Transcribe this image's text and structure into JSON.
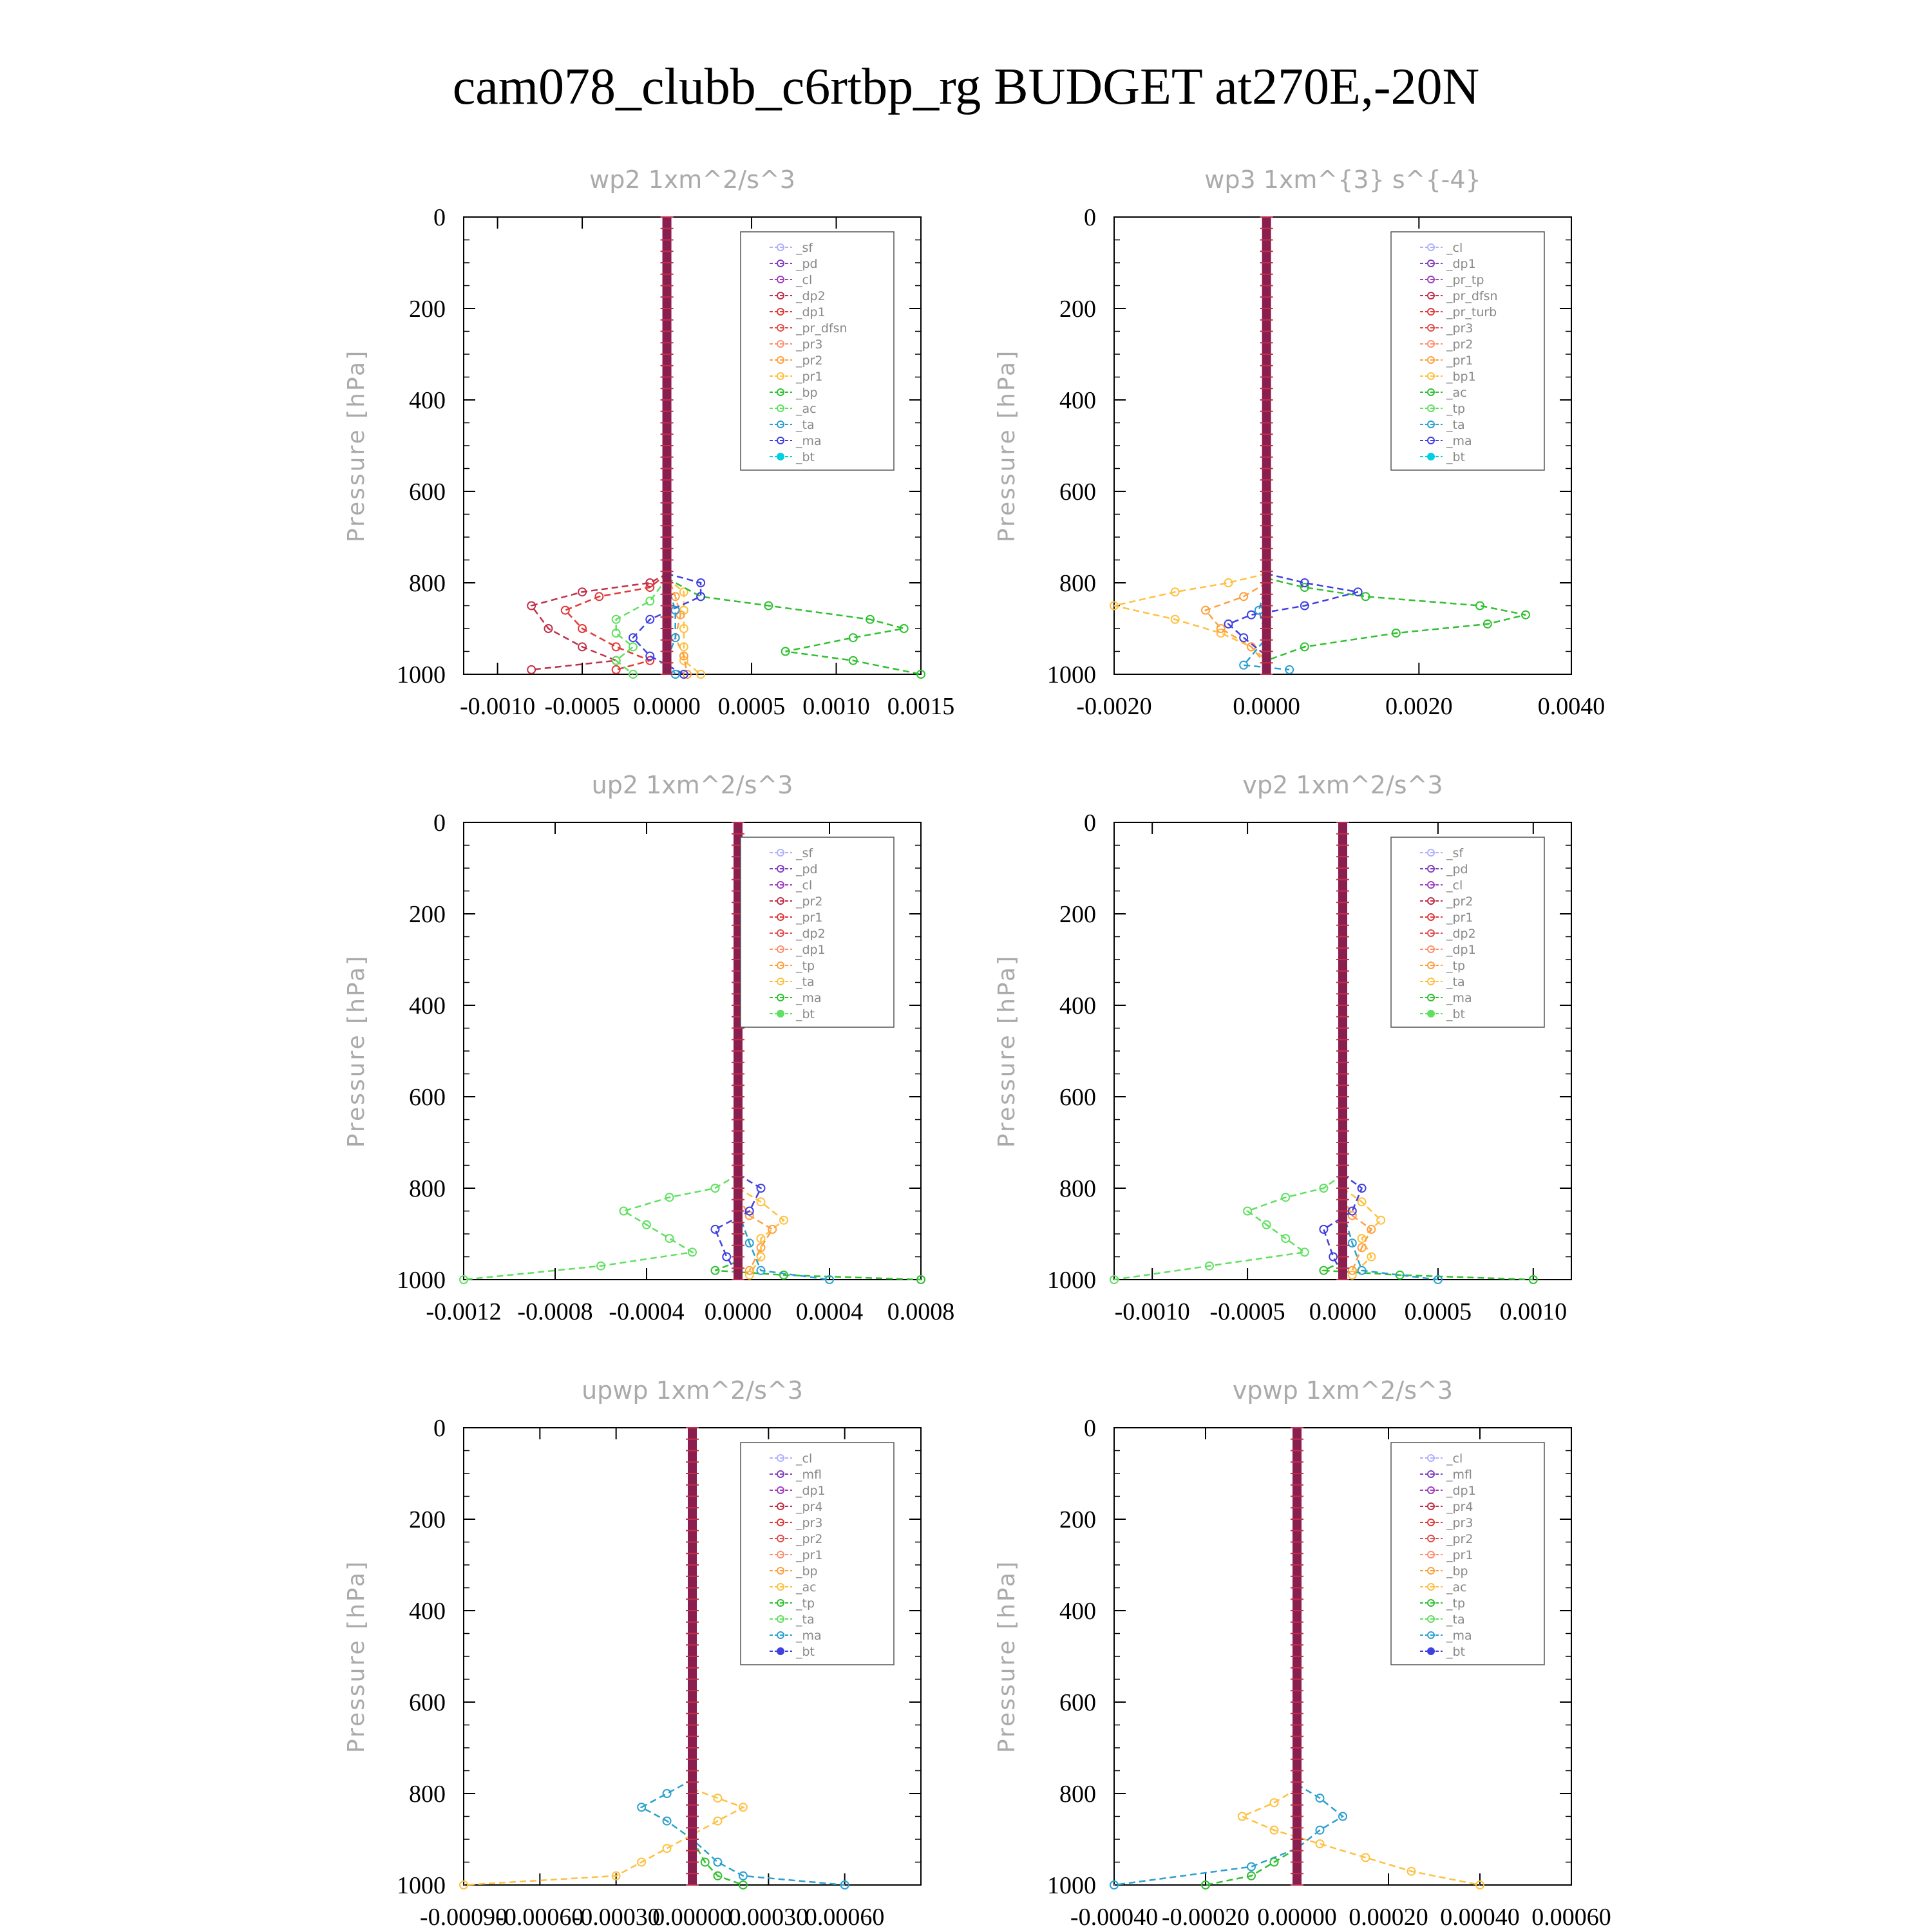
{
  "title": "cam078_clubb_c6rtbp_rg  BUDGET at270E,-20N",
  "chart_data": [
    {
      "type": "line",
      "title": "wp2   1xm^2/s^3",
      "ylabel": "Pressure [hPa]",
      "xlim": [
        -0.0012,
        0.0015
      ],
      "ylim": [
        1000,
        0
      ],
      "xticks": [
        "-0.0010",
        "-0.0005",
        "0.0000",
        "0.0005",
        "0.0010",
        "0.0015"
      ],
      "xtick_values": [
        -0.001,
        -0.0005,
        0,
        0.0005,
        0.001,
        0.0015
      ],
      "yticks": [
        0,
        200,
        400,
        600,
        800,
        1000
      ],
      "legend": [
        "_sf",
        "_pd",
        "_cl",
        "_dp2",
        "_dp1",
        "_pr_dfsn",
        "_pr3",
        "_pr2",
        "_pr1",
        "_bp",
        "_ac",
        "_ta",
        "_ma",
        "_bt"
      ],
      "series": [
        {
          "name": "_dp2",
          "color": "#c0304a",
          "x": [
            0,
            -0.0001,
            -0.0005,
            -0.0008,
            -0.0007,
            -0.0005,
            -0.0003,
            -0.0008
          ],
          "y": [
            780,
            800,
            820,
            850,
            900,
            940,
            970,
            990
          ]
        },
        {
          "name": "_dp1",
          "color": "#e03a3a",
          "x": [
            0,
            -0.0001,
            -0.0004,
            -0.0006,
            -0.0005,
            -0.0003,
            -0.0001,
            -0.0003
          ],
          "y": [
            780,
            810,
            830,
            860,
            900,
            940,
            970,
            990
          ]
        },
        {
          "name": "_pr2",
          "color": "#ffc040",
          "x": [
            0,
            0.0001,
            0.0001,
            0.0001,
            0.0001,
            0.0001,
            0.0002
          ],
          "y": [
            790,
            820,
            860,
            900,
            940,
            970,
            1000
          ]
        },
        {
          "name": "_pr1",
          "color": "#ffa040",
          "x": [
            0,
            5e-05,
            8e-05,
            5e-05,
            0.0001,
            0.00012
          ],
          "y": [
            780,
            830,
            870,
            920,
            960,
            1000
          ]
        },
        {
          "name": "_bp",
          "color": "#30c030",
          "x": [
            0,
            0.0002,
            0.0006,
            0.0012,
            0.0014,
            0.0011,
            0.0007,
            0.0011,
            0.0015
          ],
          "y": [
            790,
            830,
            850,
            880,
            900,
            920,
            950,
            970,
            1000
          ]
        },
        {
          "name": "_ac",
          "color": "#60e060",
          "x": [
            0,
            -0.0001,
            -0.0003,
            -0.0003,
            -0.0002,
            -0.0003,
            -0.0002
          ],
          "y": [
            790,
            840,
            880,
            910,
            940,
            970,
            1000
          ]
        },
        {
          "name": "_ta",
          "color": "#4040e0",
          "x": [
            0,
            0.0002,
            0.0002,
            -0.0001,
            -0.0002,
            -0.0001,
            0.0001
          ],
          "y": [
            780,
            800,
            830,
            880,
            920,
            960,
            1000
          ]
        },
        {
          "name": "_ma",
          "color": "#2aa0d0",
          "x": [
            0,
            5e-05,
            5e-05,
            0,
            5e-05
          ],
          "y": [
            800,
            860,
            920,
            970,
            1000
          ]
        }
      ]
    },
    {
      "type": "line",
      "title": "wp3   1xm^{3} s^{-4}",
      "ylabel": "Pressure [hPa]",
      "xlim": [
        -0.002,
        0.004
      ],
      "ylim": [
        1000,
        0
      ],
      "xticks": [
        "-0.0020",
        "0.0000",
        "0.0020",
        "0.0040"
      ],
      "xtick_values": [
        -0.002,
        0,
        0.002,
        0.004
      ],
      "yticks": [
        0,
        200,
        400,
        600,
        800,
        1000
      ],
      "legend": [
        "_cl",
        "_dp1",
        "_pr_tp",
        "_pr_dfsn",
        "_pr_turb",
        "_pr3",
        "_pr2",
        "_pr1",
        "_bp1",
        "_ac",
        "_tp",
        "_ta",
        "_ma",
        "_bt"
      ],
      "series": [
        {
          "name": "_pr1",
          "color": "#ffc040",
          "x": [
            0,
            -0.0005,
            -0.0012,
            -0.002,
            -0.0012,
            -0.0006,
            -0.0002,
            0
          ],
          "y": [
            780,
            800,
            820,
            850,
            880,
            910,
            940,
            970
          ]
        },
        {
          "name": "_pr2",
          "color": "#ffa040",
          "x": [
            0,
            -0.0003,
            -0.0008,
            -0.0006,
            -0.0002,
            0
          ],
          "y": [
            800,
            830,
            860,
            900,
            940,
            980
          ]
        },
        {
          "name": "_bp1",
          "color": "#30c030",
          "x": [
            0,
            0.0005,
            0.0013,
            0.0028,
            0.0034,
            0.0029,
            0.0017,
            0.0005,
            0
          ],
          "y": [
            790,
            810,
            830,
            850,
            870,
            890,
            910,
            940,
            970
          ]
        },
        {
          "name": "_ta",
          "color": "#4040e0",
          "x": [
            0,
            0.0005,
            0.0012,
            0.0005,
            -0.0002,
            -0.0005,
            -0.0003,
            0
          ],
          "y": [
            780,
            800,
            820,
            850,
            870,
            890,
            920,
            960
          ]
        },
        {
          "name": "_ma",
          "color": "#2aa0d0",
          "x": [
            0,
            -0.0001,
            0,
            -0.0003,
            0.0003
          ],
          "y": [
            800,
            860,
            920,
            980,
            990
          ]
        }
      ]
    },
    {
      "type": "line",
      "title": "up2   1xm^2/s^3",
      "ylabel": "Pressure [hPa]",
      "xlim": [
        -0.0012,
        0.0008
      ],
      "ylim": [
        1000,
        0
      ],
      "xticks": [
        "-0.0012",
        "-0.0008",
        "-0.0004",
        "0.0000",
        "0.0004",
        "0.0008"
      ],
      "xtick_values": [
        -0.0012,
        -0.0008,
        -0.0004,
        0,
        0.0004,
        0.0008
      ],
      "yticks": [
        0,
        200,
        400,
        600,
        800,
        1000
      ],
      "legend": [
        "_sf",
        "_pd",
        "_cl",
        "_pr2",
        "_pr1",
        "_dp2",
        "_dp1",
        "_tp",
        "_ta",
        "_ma",
        "_bt"
      ],
      "series": [
        {
          "name": "_dp1",
          "color": "#60e060",
          "x": [
            0,
            -0.0001,
            -0.0003,
            -0.0005,
            -0.0004,
            -0.0003,
            -0.0002,
            -0.0006,
            -0.0012
          ],
          "y": [
            770,
            800,
            820,
            850,
            880,
            910,
            940,
            970,
            1000
          ]
        },
        {
          "name": "_dp2",
          "color": "#30c030",
          "x": [
            0,
            -0.0001,
            0.0002,
            0.0008
          ],
          "y": [
            960,
            980,
            990,
            1000
          ]
        },
        {
          "name": "_pr1",
          "color": "#ffc040",
          "x": [
            0,
            0.0001,
            0.0002,
            0.0001,
            0.0001,
            5e-05
          ],
          "y": [
            800,
            830,
            870,
            910,
            950,
            990
          ]
        },
        {
          "name": "_pr2",
          "color": "#ffa040",
          "x": [
            0,
            5e-05,
            0.00015,
            0.0001,
            5e-05
          ],
          "y": [
            820,
            860,
            890,
            930,
            980
          ]
        },
        {
          "name": "_ta",
          "color": "#4040e0",
          "x": [
            0,
            0.0001,
            5e-05,
            -0.0001,
            -5e-05,
            0
          ],
          "y": [
            770,
            800,
            850,
            890,
            950,
            990
          ]
        },
        {
          "name": "_ma",
          "color": "#2aa0d0",
          "x": [
            0,
            5e-05,
            0.0001,
            0.0004
          ],
          "y": [
            850,
            920,
            980,
            1000
          ]
        }
      ]
    },
    {
      "type": "line",
      "title": "vp2   1xm^2/s^3",
      "ylabel": "Pressure [hPa]",
      "xlim": [
        -0.0012,
        0.0012
      ],
      "ylim": [
        1000,
        0
      ],
      "xticks": [
        "-0.0010",
        "-0.0005",
        "0.0000",
        "0.0005",
        "0.0010"
      ],
      "xtick_values": [
        -0.001,
        -0.0005,
        0,
        0.0005,
        0.001
      ],
      "yticks": [
        0,
        200,
        400,
        600,
        800,
        1000
      ],
      "legend": [
        "_sf",
        "_pd",
        "_cl",
        "_pr2",
        "_pr1",
        "_dp2",
        "_dp1",
        "_tp",
        "_ta",
        "_ma",
        "_bt"
      ],
      "series": [
        {
          "name": "_dp1",
          "color": "#60e060",
          "x": [
            0,
            -0.0001,
            -0.0003,
            -0.0005,
            -0.0004,
            -0.0003,
            -0.0002,
            -0.0007,
            -0.0012
          ],
          "y": [
            770,
            800,
            820,
            850,
            880,
            910,
            940,
            970,
            1000
          ]
        },
        {
          "name": "_dp2",
          "color": "#30c030",
          "x": [
            0,
            -0.0001,
            0.0003,
            0.001
          ],
          "y": [
            960,
            980,
            990,
            1000
          ]
        },
        {
          "name": "_pr1",
          "color": "#ffc040",
          "x": [
            0,
            0.0001,
            0.0002,
            0.0001,
            0.00015,
            5e-05
          ],
          "y": [
            800,
            830,
            870,
            910,
            950,
            990
          ]
        },
        {
          "name": "_pr2",
          "color": "#ffa040",
          "x": [
            0,
            5e-05,
            0.00015,
            0.0001,
            5e-05
          ],
          "y": [
            820,
            860,
            890,
            930,
            980
          ]
        },
        {
          "name": "_ta",
          "color": "#4040e0",
          "x": [
            0,
            0.0001,
            5e-05,
            -0.0001,
            -5e-05,
            0
          ],
          "y": [
            770,
            800,
            850,
            890,
            950,
            990
          ]
        },
        {
          "name": "_ma",
          "color": "#2aa0d0",
          "x": [
            0,
            5e-05,
            0.0001,
            0.0005
          ],
          "y": [
            850,
            920,
            980,
            1000
          ]
        }
      ]
    },
    {
      "type": "line",
      "title": "upwp   1xm^2/s^3",
      "ylabel": "Pressure [hPa]",
      "xlim": [
        -0.0009,
        0.0009
      ],
      "ylim": [
        1000,
        0
      ],
      "xticks": [
        "-0.00090",
        "-0.00060",
        "-0.00030",
        "0.00000",
        "0.00030",
        "0.00060"
      ],
      "xtick_values": [
        -0.0009,
        -0.0006,
        -0.0003,
        0,
        0.0003,
        0.0006
      ],
      "yticks": [
        0,
        200,
        400,
        600,
        800,
        1000
      ],
      "legend": [
        "_cl",
        "_mfl",
        "_dp1",
        "_pr4",
        "_pr3",
        "_pr2",
        "_pr1",
        "_bp",
        "_ac",
        "_tp",
        "_ta",
        "_ma",
        "_bt"
      ],
      "series": [
        {
          "name": "_pr1",
          "color": "#ffc040",
          "x": [
            0,
            0.0001,
            0.0002,
            0.0001,
            0,
            -0.0001,
            -0.0002,
            -0.0003,
            -0.0009
          ],
          "y": [
            790,
            810,
            830,
            860,
            890,
            920,
            950,
            980,
            1000
          ]
        },
        {
          "name": "_tp",
          "color": "#2aa0d0",
          "x": [
            0,
            -0.0001,
            -0.0002,
            -0.0001,
            0,
            0.0001,
            0.0002,
            0.0006
          ],
          "y": [
            770,
            800,
            830,
            860,
            900,
            950,
            980,
            1000
          ]
        },
        {
          "name": "_bp",
          "color": "#30c030",
          "x": [
            0,
            5e-05,
            0.0001,
            0.0002
          ],
          "y": [
            900,
            950,
            980,
            1000
          ]
        }
      ]
    },
    {
      "type": "line",
      "title": "vpwp   1xm^2/s^3",
      "ylabel": "Pressure [hPa]",
      "xlim": [
        -0.0004,
        0.0006
      ],
      "ylim": [
        1000,
        0
      ],
      "xticks": [
        "-0.00040",
        "-0.00020",
        "0.00000",
        "0.00020",
        "0.00040",
        "0.00060"
      ],
      "xtick_values": [
        -0.0004,
        -0.0002,
        0,
        0.0002,
        0.0004,
        0.0006
      ],
      "yticks": [
        0,
        200,
        400,
        600,
        800,
        1000
      ],
      "legend": [
        "_cl",
        "_mfl",
        "_dp1",
        "_pr4",
        "_pr3",
        "_pr2",
        "_pr1",
        "_bp",
        "_ac",
        "_tp",
        "_ta",
        "_ma",
        "_bt"
      ],
      "series": [
        {
          "name": "_pr1",
          "color": "#ffc040",
          "x": [
            0,
            -5e-05,
            -0.00012,
            -5e-05,
            5e-05,
            0.00015,
            0.00025,
            0.0004
          ],
          "y": [
            790,
            820,
            850,
            880,
            910,
            940,
            970,
            1000
          ]
        },
        {
          "name": "_tp",
          "color": "#2aa0d0",
          "x": [
            0,
            5e-05,
            0.0001,
            5e-05,
            0,
            -0.0001,
            -0.0004
          ],
          "y": [
            780,
            810,
            850,
            880,
            920,
            960,
            1000
          ]
        },
        {
          "name": "_bp",
          "color": "#30c030",
          "x": [
            0,
            -5e-05,
            -0.0001,
            -0.0002
          ],
          "y": [
            920,
            950,
            980,
            1000
          ]
        }
      ]
    }
  ]
}
